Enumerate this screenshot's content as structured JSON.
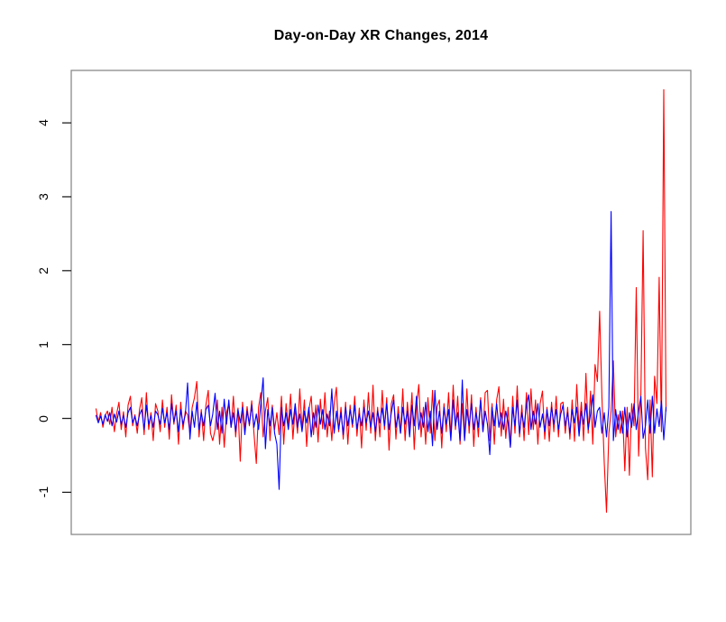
{
  "chart_data": {
    "type": "line",
    "title": "Day-on-Day XR Changes, 2014",
    "xlabel": "",
    "ylabel": "",
    "ylim": [
      -1.57,
      4.71
    ],
    "y_ticks": [
      -1,
      0,
      1,
      2,
      3,
      4
    ],
    "x_axis_labels": "none",
    "grid": false,
    "legend": "none",
    "series": [
      {
        "name": "red-series",
        "color": "#ff0000",
        "values": [
          0.13,
          -0.05,
          0.08,
          -0.12,
          0.04,
          0.1,
          -0.08,
          0.15,
          -0.18,
          0.06,
          0.22,
          -0.15,
          0.09,
          -0.25,
          0.18,
          0.3,
          -0.1,
          0.05,
          -0.2,
          0.12,
          0.28,
          -0.22,
          0.35,
          -0.15,
          0.08,
          -0.3,
          0.2,
          0.1,
          -0.18,
          0.25,
          -0.12,
          0.15,
          -0.28,
          0.32,
          -0.08,
          0.18,
          -0.35,
          0.22,
          -0.15,
          0.1,
          0.05,
          -0.2,
          0.15,
          0.28,
          0.5,
          -0.25,
          0.12,
          -0.3,
          0.18,
          0.38,
          -0.2,
          -0.3,
          -0.15,
          0.25,
          -0.35,
          0.15,
          -0.39,
          0.08,
          0.2,
          -0.12,
          0.3,
          -0.25,
          0.14,
          -0.58,
          0.22,
          -0.15,
          0.16,
          -0.1,
          0.24,
          -0.2,
          -0.61,
          0.15,
          0.35,
          -0.25,
          0.1,
          0.28,
          -0.3,
          0.18,
          -0.15,
          0.08,
          -0.22,
          0.3,
          -0.35,
          0.2,
          -0.1,
          0.33,
          -0.28,
          0.15,
          -0.2,
          0.4,
          -0.15,
          0.25,
          -0.38,
          0.12,
          0.3,
          -0.22,
          0.18,
          -0.32,
          0.26,
          -0.14,
          0.35,
          -0.25,
          0.1,
          -0.3,
          0.2,
          0.42,
          -0.18,
          0.15,
          -0.28,
          0.22,
          -0.35,
          0.18,
          -0.12,
          0.3,
          -0.24,
          0.14,
          -0.4,
          0.25,
          -0.16,
          0.35,
          -0.2,
          0.45,
          -0.3,
          0.15,
          -0.25,
          0.38,
          -0.15,
          0.28,
          -0.43,
          0.2,
          0.32,
          -0.28,
          0.16,
          -0.2,
          0.4,
          -0.3,
          0.22,
          -0.15,
          0.35,
          -0.42,
          0.18,
          0.46,
          -0.25,
          0.15,
          -0.35,
          0.28,
          -0.2,
          0.38,
          -0.3,
          0.16,
          0.25,
          -0.4,
          0.2,
          -0.18,
          0.35,
          -0.25,
          0.45,
          -0.15,
          0.3,
          -0.35,
          0.2,
          -0.28,
          0.4,
          -0.2,
          0.32,
          -0.38,
          0.15,
          -0.25,
          0.28,
          -0.18,
          0.35,
          0.38,
          -0.3,
          0.2,
          -0.35,
          0.25,
          0.43,
          -0.24,
          0.26,
          -0.27,
          0.15,
          -0.39,
          0.3,
          -0.2,
          0.44,
          -0.25,
          0.18,
          -0.3,
          0.35,
          -0.22,
          0.4,
          -0.15,
          0.25,
          -0.35,
          0.2,
          0.37,
          -0.28,
          0.15,
          -0.31,
          0.22,
          -0.18,
          0.3,
          -0.25,
          0.2,
          0.22,
          -0.2,
          0.15,
          -0.28,
          0.25,
          -0.31,
          0.46,
          -0.15,
          0.22,
          -0.3,
          0.61,
          -0.2,
          0.37,
          -0.35,
          0.73,
          0.5,
          1.45,
          0.3,
          -0.6,
          -1.27,
          -0.2,
          0.1,
          0.78,
          -0.25,
          0.05,
          -0.2,
          0.1,
          -0.71,
          0.15,
          -0.77,
          0.2,
          -0.1,
          1.77,
          -0.51,
          0.3,
          2.54,
          -0.4,
          -0.83,
          0.25,
          -0.79,
          0.57,
          0.2,
          1.91,
          -0.18,
          4.45,
          0.1
        ]
      },
      {
        "name": "blue-series",
        "color": "#0000ff",
        "values": [
          0.04,
          -0.06,
          0.03,
          -0.08,
          0.05,
          -0.04,
          0.08,
          -0.1,
          0.06,
          -0.05,
          0.1,
          -0.08,
          0.04,
          -0.12,
          0.08,
          0.15,
          -0.06,
          0.03,
          -0.1,
          0.05,
          0.12,
          -0.15,
          0.18,
          -0.08,
          0.04,
          -0.12,
          0.1,
          0.05,
          -0.08,
          0.14,
          -0.06,
          0.08,
          -0.15,
          0.2,
          -0.05,
          0.1,
          -0.18,
          0.12,
          -0.08,
          0.05,
          0.48,
          -0.28,
          0.1,
          -0.12,
          0.22,
          -0.15,
          0.08,
          -0.1,
          0.12,
          0.18,
          -0.1,
          0.06,
          0.34,
          -0.15,
          0.1,
          -0.2,
          0.26,
          -0.08,
          0.25,
          -0.12,
          0.08,
          -0.18,
          0.12,
          -0.06,
          0.15,
          -0.22,
          0.1,
          -0.08,
          0.18,
          -0.12,
          0.06,
          -0.15,
          0.2,
          0.55,
          -0.41,
          0.12,
          -0.1,
          0.15,
          -0.2,
          -0.35,
          -0.96,
          0.15,
          -0.1,
          0.08,
          -0.15,
          0.12,
          -0.08,
          0.2,
          -0.12,
          0.06,
          -0.18,
          0.1,
          -0.06,
          0.15,
          -0.25,
          0.08,
          -0.12,
          0.18,
          -0.08,
          0.12,
          -0.15,
          0.06,
          -0.1,
          0.4,
          -0.2,
          0.1,
          -0.15,
          0.08,
          -0.22,
          0.15,
          -0.1,
          0.12,
          -0.08,
          0.18,
          -0.14,
          0.06,
          -0.1,
          0.15,
          -0.06,
          0.1,
          -0.12,
          0.08,
          -0.18,
          0.1,
          -0.06,
          0.14,
          -0.1,
          0.2,
          -0.15,
          0.08,
          0.25,
          -0.12,
          0.06,
          -0.2,
          0.15,
          -0.08,
          0.1,
          -0.25,
          0.18,
          -0.1,
          0.3,
          -0.15,
          0.08,
          -0.12,
          0.22,
          -0.18,
          0.1,
          -0.37,
          0.38,
          -0.15,
          0.1,
          -0.2,
          0.15,
          -0.08,
          0.12,
          -0.3,
          0.25,
          -0.1,
          0.08,
          -0.3,
          0.52,
          -0.3,
          0.12,
          -0.1,
          0.2,
          -0.15,
          0.08,
          -0.12,
          0.25,
          -0.18,
          0.1,
          -0.08,
          -0.49,
          0.15,
          -0.1,
          0.2,
          -0.12,
          0.08,
          -0.15,
          0.1,
          -0.06,
          -0.39,
          0.15,
          -0.1,
          0.25,
          -0.2,
          0.08,
          -0.12,
          0.18,
          0.32,
          -0.15,
          0.1,
          -0.08,
          0.2,
          -0.12,
          0.06,
          -0.18,
          0.12,
          -0.1,
          0.15,
          -0.08,
          0.12,
          -0.15,
          0.06,
          0.18,
          -0.1,
          0.08,
          -0.2,
          0.12,
          -0.06,
          0.15,
          -0.24,
          0.1,
          -0.08,
          0.2,
          -0.15,
          0.06,
          0.32,
          -0.12,
          0.1,
          0.15,
          -0.2,
          0.08,
          -0.25,
          0.15,
          2.8,
          -0.3,
          0.12,
          -0.15,
          0.1,
          -0.2,
          0.15,
          -0.25,
          0.08,
          -0.12,
          0.2,
          -0.15,
          0.1,
          0.3,
          -0.27,
          -0.1,
          0.25,
          -0.2,
          0.3,
          -0.2,
          0.13,
          -0.11,
          0.24,
          -0.29,
          0.15
        ]
      }
    ]
  }
}
